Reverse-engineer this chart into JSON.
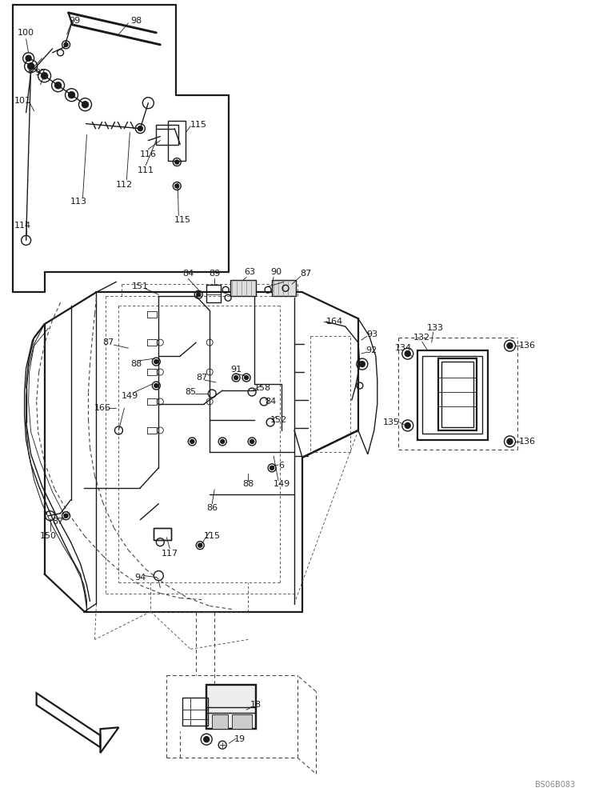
{
  "bg_color": "#ffffff",
  "line_color": "#1a1a1a",
  "dashed_color": "#444444",
  "text_color": "#1a1a1a",
  "figsize": [
    7.44,
    10.0
  ],
  "dpi": 100,
  "watermark": "BS06B083",
  "lw_thick": 1.6,
  "lw_med": 1.0,
  "lw_thin": 0.6,
  "fs_label": 8.0
}
